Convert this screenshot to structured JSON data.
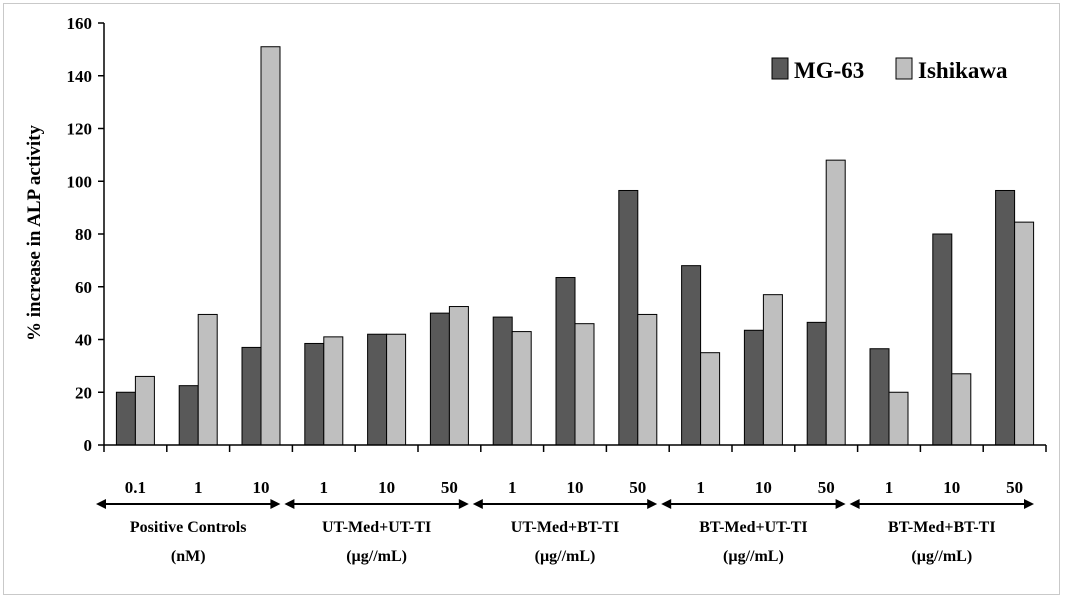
{
  "chart_data": {
    "type": "bar",
    "ylabel": "% increase in ALP activity",
    "ylim": [
      0,
      160
    ],
    "yticks": [
      "0",
      "20",
      "40",
      "60",
      "80",
      "100",
      "120",
      "140",
      "160"
    ],
    "ytick_values": [
      0,
      20,
      40,
      60,
      80,
      100,
      120,
      140,
      160
    ],
    "groups": [
      {
        "label_line1": "Positive Controls",
        "label_line2": "(nM)",
        "categories": [
          "0.1",
          "1",
          "10"
        ]
      },
      {
        "label_line1": "UT-Med+UT-TI",
        "label_line2": "(µg//mL)",
        "categories": [
          "1",
          "10",
          "50"
        ]
      },
      {
        "label_line1": "UT-Med+BT-TI",
        "label_line2": "(µg//mL)",
        "categories": [
          "1",
          "10",
          "50"
        ]
      },
      {
        "label_line1": "BT-Med+UT-TI",
        "label_line2": "(µg//mL)",
        "categories": [
          "1",
          "10",
          "50"
        ]
      },
      {
        "label_line1": "BT-Med+BT-TI",
        "label_line2": "(µg//mL)",
        "categories": [
          "1",
          "10",
          "50"
        ]
      }
    ],
    "series": [
      {
        "name": "MG-63",
        "color": "#595959",
        "values": [
          20,
          22.5,
          37,
          38.5,
          42,
          50,
          48.5,
          63.5,
          96.5,
          68,
          43.5,
          46.5,
          36.5,
          80,
          96.5
        ]
      },
      {
        "name": "Ishikawa",
        "color": "#bfbfbf",
        "values": [
          26,
          49.5,
          151,
          41,
          42,
          52.5,
          43,
          46,
          49.5,
          35,
          57,
          108,
          20,
          27,
          84.5
        ]
      }
    ],
    "legend_position": "top-right",
    "grid": false
  }
}
